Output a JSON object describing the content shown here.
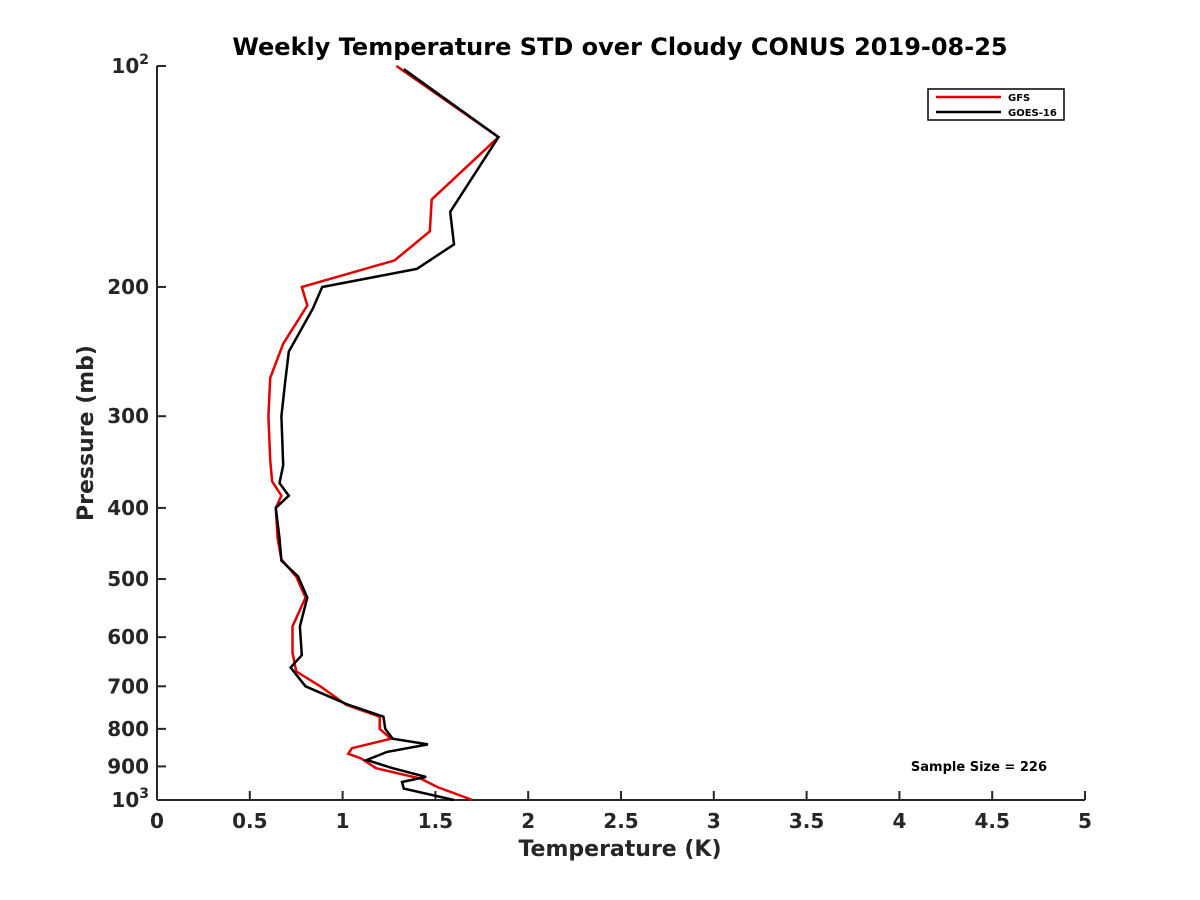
{
  "chart_data": {
    "type": "line",
    "title": "Weekly Temperature STD over Cloudy CONUS 2019-08-25",
    "xlabel": "Temperature (K)",
    "ylabel": "Pressure (mb)",
    "xlim": [
      0,
      5
    ],
    "ylim": [
      1000,
      100
    ],
    "y_scale": "log",
    "y_reversed": true,
    "grid": false,
    "legend_position": "top-right",
    "x_ticks": [
      "0",
      "0.5",
      "1",
      "1.5",
      "2",
      "2.5",
      "3",
      "3.5",
      "4",
      "4.5",
      "5"
    ],
    "y_ticks": [
      {
        "value": 100,
        "base": "10",
        "exp": "2",
        "text": ""
      },
      {
        "value": 200,
        "base": "",
        "exp": "",
        "text": "200"
      },
      {
        "value": 300,
        "base": "",
        "exp": "",
        "text": "300"
      },
      {
        "value": 400,
        "base": "",
        "exp": "",
        "text": "400"
      },
      {
        "value": 500,
        "base": "",
        "exp": "",
        "text": "500"
      },
      {
        "value": 600,
        "base": "",
        "exp": "",
        "text": "600"
      },
      {
        "value": 700,
        "base": "",
        "exp": "",
        "text": "700"
      },
      {
        "value": 800,
        "base": "",
        "exp": "",
        "text": "800"
      },
      {
        "value": 900,
        "base": "",
        "exp": "",
        "text": "900"
      },
      {
        "value": 1000,
        "base": "10",
        "exp": "3",
        "text": ""
      }
    ],
    "series": [
      {
        "name": "GFS",
        "color": "#e00000",
        "points": [
          [
            1.29,
            100
          ],
          [
            1.84,
            125
          ],
          [
            1.48,
            152
          ],
          [
            1.47,
            168
          ],
          [
            1.28,
            184
          ],
          [
            0.78,
            200
          ],
          [
            0.81,
            212
          ],
          [
            0.68,
            239
          ],
          [
            0.61,
            266
          ],
          [
            0.6,
            300
          ],
          [
            0.61,
            344
          ],
          [
            0.62,
            368
          ],
          [
            0.67,
            385
          ],
          [
            0.64,
            400
          ],
          [
            0.65,
            440
          ],
          [
            0.67,
            470
          ],
          [
            0.75,
            496
          ],
          [
            0.8,
            530
          ],
          [
            0.73,
            580
          ],
          [
            0.73,
            630
          ],
          [
            0.75,
            668
          ],
          [
            0.88,
            700
          ],
          [
            1.02,
            742
          ],
          [
            1.2,
            770
          ],
          [
            1.2,
            800
          ],
          [
            1.26,
            825
          ],
          [
            1.05,
            850
          ],
          [
            1.03,
            865
          ],
          [
            1.1,
            878
          ],
          [
            1.18,
            905
          ],
          [
            1.42,
            935
          ],
          [
            1.51,
            960
          ],
          [
            1.7,
            1000
          ]
        ]
      },
      {
        "name": "GOES-16",
        "color": "#000000",
        "points": [
          [
            1.33,
            101
          ],
          [
            1.84,
            125
          ],
          [
            1.58,
            158
          ],
          [
            1.6,
            175
          ],
          [
            1.4,
            189
          ],
          [
            0.89,
            200
          ],
          [
            0.84,
            214
          ],
          [
            0.71,
            245
          ],
          [
            0.69,
            270
          ],
          [
            0.67,
            300
          ],
          [
            0.68,
            350
          ],
          [
            0.66,
            370
          ],
          [
            0.71,
            385
          ],
          [
            0.64,
            400
          ],
          [
            0.66,
            440
          ],
          [
            0.67,
            472
          ],
          [
            0.76,
            496
          ],
          [
            0.81,
            530
          ],
          [
            0.77,
            580
          ],
          [
            0.78,
            635
          ],
          [
            0.72,
            660
          ],
          [
            0.8,
            700
          ],
          [
            1.02,
            740
          ],
          [
            1.22,
            770
          ],
          [
            1.23,
            800
          ],
          [
            1.27,
            825
          ],
          [
            1.46,
            840
          ],
          [
            1.24,
            860
          ],
          [
            1.13,
            882
          ],
          [
            1.27,
            905
          ],
          [
            1.45,
            930
          ],
          [
            1.32,
            945
          ],
          [
            1.33,
            965
          ],
          [
            1.6,
            1000
          ]
        ]
      }
    ],
    "annotations": [
      "Sample Size = 226"
    ]
  }
}
